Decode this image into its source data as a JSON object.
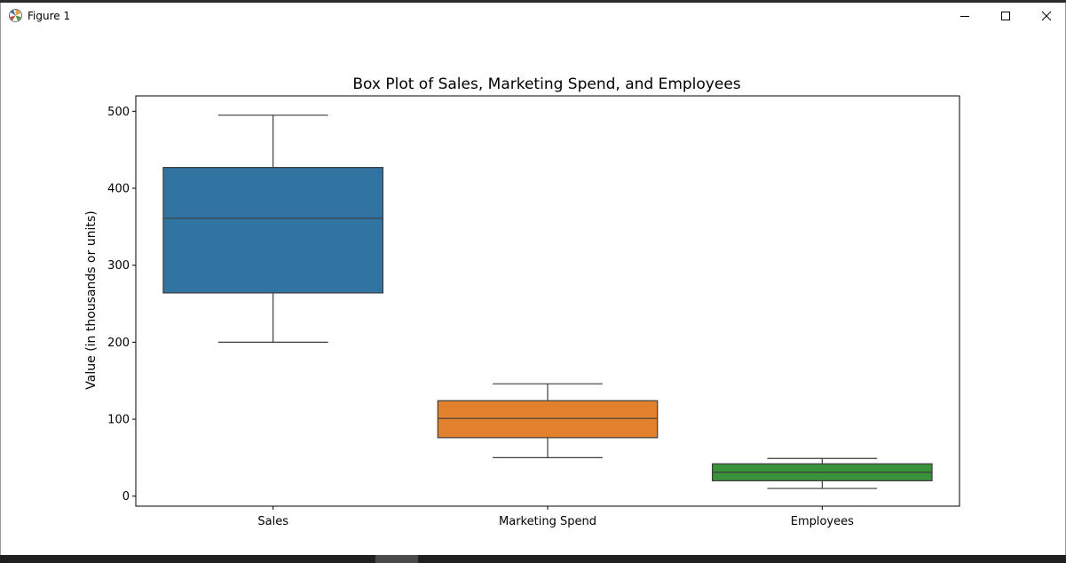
{
  "window": {
    "title": "Figure 1"
  },
  "chart_data": {
    "type": "box",
    "title": "Box Plot of Sales, Marketing Spend, and Employees",
    "xlabel": "",
    "ylabel": "Value (in thousands or units)",
    "ylim": [
      -13,
      520
    ],
    "yticks": [
      0,
      100,
      200,
      300,
      400,
      500
    ],
    "categories": [
      "Sales",
      "Marketing Spend",
      "Employees"
    ],
    "boxes": [
      {
        "name": "Sales",
        "whisker_low": 200,
        "q1": 264,
        "median": 361,
        "q3": 427,
        "whisker_high": 495,
        "color": "#3274a1"
      },
      {
        "name": "Marketing Spend",
        "whisker_low": 50,
        "q1": 76,
        "median": 101,
        "q3": 124,
        "whisker_high": 146,
        "color": "#e1812c"
      },
      {
        "name": "Employees",
        "whisker_low": 10,
        "q1": 20,
        "median": 31,
        "q3": 42,
        "whisker_high": 49,
        "color": "#3a923a"
      }
    ],
    "grid": false,
    "legend": "none"
  }
}
